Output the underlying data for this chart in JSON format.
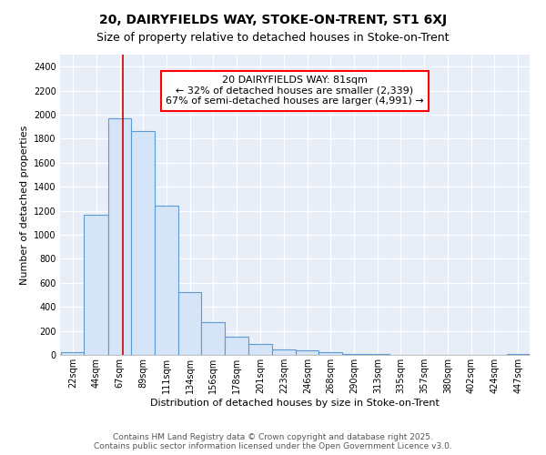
{
  "title": "20, DAIRYFIELDS WAY, STOKE-ON-TRENT, ST1 6XJ",
  "subtitle": "Size of property relative to detached houses in Stoke-on-Trent",
  "xlabel": "Distribution of detached houses by size in Stoke-on-Trent",
  "ylabel": "Number of detached properties",
  "bar_values": [
    25,
    1170,
    1970,
    1860,
    1240,
    520,
    275,
    150,
    90,
    45,
    40,
    20,
    10,
    5,
    3,
    2,
    2,
    1,
    1,
    10
  ],
  "bin_edges": [
    22,
    44,
    67,
    89,
    111,
    134,
    156,
    178,
    201,
    223,
    246,
    268,
    290,
    313,
    335,
    357,
    380,
    402,
    424,
    447,
    469
  ],
  "bar_color": "#d6e4f7",
  "bar_edgecolor": "#5b9bd5",
  "bar_linewidth": 0.8,
  "ylim": [
    0,
    2500
  ],
  "yticks": [
    0,
    200,
    400,
    600,
    800,
    1000,
    1200,
    1400,
    1600,
    1800,
    2000,
    2200,
    2400
  ],
  "property_size": 81,
  "vline_color": "#cc0000",
  "annotation_text": "20 DAIRYFIELDS WAY: 81sqm\n← 32% of detached houses are smaller (2,339)\n67% of semi-detached houses are larger (4,991) →",
  "bg_color": "#e8eef8",
  "grid_color": "#ffffff",
  "footer_line1": "Contains HM Land Registry data © Crown copyright and database right 2025.",
  "footer_line2": "Contains public sector information licensed under the Open Government Licence v3.0.",
  "title_fontsize": 10,
  "subtitle_fontsize": 9,
  "axis_label_fontsize": 8,
  "tick_fontsize": 7,
  "annotation_fontsize": 8,
  "footer_fontsize": 6.5
}
